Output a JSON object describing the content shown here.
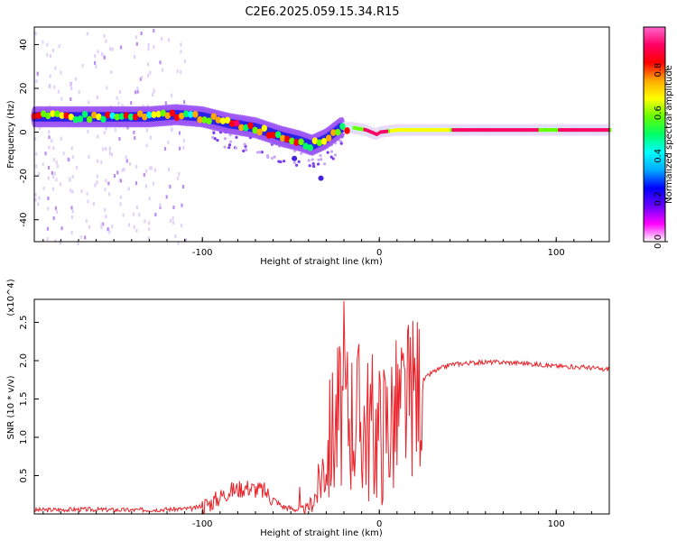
{
  "title": "C2E6.2025.059.15.34.R15",
  "chart_data": [
    {
      "type": "heatmap",
      "title": "C2E6.2025.059.15.34.R15",
      "xlabel": "Height of straight line (km)",
      "ylabel": "Frequency (Hz)",
      "xlim": [
        -195,
        130
      ],
      "ylim": [
        -50,
        48
      ],
      "xticks": [
        -100,
        0,
        100
      ],
      "yticks": [
        -40,
        -20,
        0,
        20,
        40
      ],
      "colorbar": {
        "label": "Normalized spectral amplitude",
        "range": [
          0,
          1
        ],
        "ticks": [
          "0.0",
          "0.2",
          "0.4",
          "0.6",
          "0.8"
        ],
        "colors": [
          "#ffffff",
          "#ff00ff",
          "#6600ff",
          "#0000ff",
          "#00aaff",
          "#00ffff",
          "#00ff66",
          "#66ff00",
          "#ffff00",
          "#ffaa00",
          "#ff0000",
          "#ff0066",
          "#ff66cc"
        ]
      },
      "ridge": {
        "x": [
          -195,
          -170,
          -150,
          -130,
          -115,
          -100,
          -85,
          -70,
          -55,
          -45,
          -38,
          -30,
          -22,
          -15,
          -8,
          -2,
          0,
          10,
          40,
          80,
          95,
          110,
          130
        ],
        "y": [
          7,
          7,
          7,
          7,
          8,
          7,
          4,
          2,
          -2,
          -4,
          -6,
          -3,
          2,
          2,
          1,
          -1,
          0,
          1,
          1,
          1,
          1,
          1,
          1
        ]
      }
    },
    {
      "type": "line",
      "xlabel": "Height of straight line (km)",
      "ylabel": "SNR (10 * v/v)",
      "yscale_label": "(x10^4)",
      "xlim": [
        -195,
        130
      ],
      "ylim": [
        0,
        2.8
      ],
      "xticks": [
        -100,
        0,
        100
      ],
      "yticks": [
        0.5,
        1.0,
        1.5,
        2.0,
        2.5
      ],
      "line_color": "#e8232a",
      "series": [
        {
          "x": [
            -195,
            -170,
            -140,
            -120,
            -105,
            -95,
            -85,
            -75,
            -65,
            -55,
            -45,
            -40,
            -35,
            -30,
            -25,
            -20,
            -15,
            -10,
            -5,
            0,
            5,
            10,
            15,
            20,
            25,
            30,
            40,
            50,
            60,
            70,
            80,
            90,
            100,
            110,
            120,
            127,
            130
          ],
          "values": [
            0.05,
            0.06,
            0.05,
            0.06,
            0.07,
            0.15,
            0.3,
            0.35,
            0.3,
            0.1,
            0.05,
            0.08,
            0.3,
            0.8,
            1.2,
            1.4,
            1.3,
            1.25,
            1.15,
            1.1,
            1.2,
            1.3,
            1.45,
            1.6,
            1.75,
            1.85,
            1.95,
            1.97,
            1.98,
            1.98,
            1.97,
            1.95,
            1.93,
            1.92,
            1.91,
            1.88,
            1.9
          ]
        }
      ]
    }
  ]
}
